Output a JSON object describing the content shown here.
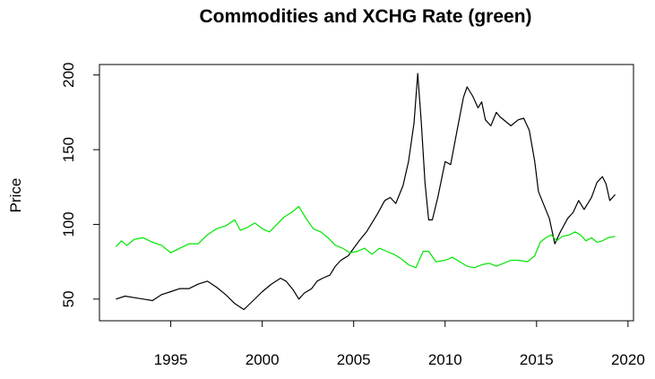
{
  "chart_data": {
    "type": "line",
    "title": "Commodities and XCHG Rate (green)",
    "xlabel": "",
    "ylabel": "Price",
    "xlim": [
      1991.1,
      2020.3
    ],
    "ylim": [
      35.5,
      207
    ],
    "x_ticks": [
      1995,
      2000,
      2005,
      2010,
      2015,
      2020
    ],
    "y_ticks": [
      50,
      100,
      150,
      200
    ],
    "grid": false,
    "series": [
      {
        "color": "#000000",
        "points": [
          [
            1992.0,
            50
          ],
          [
            1992.5,
            52
          ],
          [
            1993.0,
            51
          ],
          [
            1993.5,
            50
          ],
          [
            1994.0,
            49
          ],
          [
            1994.5,
            53
          ],
          [
            1995.0,
            55
          ],
          [
            1995.5,
            57
          ],
          [
            1996.0,
            57
          ],
          [
            1996.5,
            60
          ],
          [
            1997.0,
            62
          ],
          [
            1997.5,
            58
          ],
          [
            1998.0,
            53
          ],
          [
            1998.5,
            47
          ],
          [
            1999.0,
            43
          ],
          [
            1999.5,
            49
          ],
          [
            2000.0,
            55
          ],
          [
            2000.5,
            60
          ],
          [
            2001.0,
            64
          ],
          [
            2001.3,
            62
          ],
          [
            2001.7,
            56
          ],
          [
            2002.0,
            50
          ],
          [
            2002.3,
            54
          ],
          [
            2002.7,
            57
          ],
          [
            2003.0,
            62
          ],
          [
            2003.3,
            64
          ],
          [
            2003.7,
            66
          ],
          [
            2004.0,
            72
          ],
          [
            2004.3,
            76
          ],
          [
            2004.7,
            79
          ],
          [
            2005.0,
            84
          ],
          [
            2005.3,
            89
          ],
          [
            2005.7,
            95
          ],
          [
            2006.0,
            101
          ],
          [
            2006.3,
            107
          ],
          [
            2006.7,
            116
          ],
          [
            2007.0,
            118
          ],
          [
            2007.3,
            114
          ],
          [
            2007.7,
            126
          ],
          [
            2008.0,
            142
          ],
          [
            2008.3,
            168
          ],
          [
            2008.5,
            201
          ],
          [
            2008.7,
            168
          ],
          [
            2008.9,
            128
          ],
          [
            2009.1,
            103
          ],
          [
            2009.3,
            103
          ],
          [
            2009.6,
            118
          ],
          [
            2010.0,
            142
          ],
          [
            2010.3,
            140
          ],
          [
            2010.7,
            166
          ],
          [
            2011.0,
            185
          ],
          [
            2011.2,
            192
          ],
          [
            2011.5,
            186
          ],
          [
            2011.8,
            178
          ],
          [
            2012.0,
            182
          ],
          [
            2012.2,
            170
          ],
          [
            2012.5,
            166
          ],
          [
            2012.8,
            175
          ],
          [
            2013.0,
            172
          ],
          [
            2013.3,
            169
          ],
          [
            2013.6,
            166
          ],
          [
            2014.0,
            170
          ],
          [
            2014.3,
            171
          ],
          [
            2014.6,
            163
          ],
          [
            2014.9,
            142
          ],
          [
            2015.1,
            122
          ],
          [
            2015.4,
            113
          ],
          [
            2015.7,
            104
          ],
          [
            2016.0,
            87
          ],
          [
            2016.3,
            95
          ],
          [
            2016.7,
            104
          ],
          [
            2017.0,
            108
          ],
          [
            2017.3,
            116
          ],
          [
            2017.6,
            110
          ],
          [
            2018.0,
            118
          ],
          [
            2018.3,
            128
          ],
          [
            2018.6,
            132
          ],
          [
            2018.8,
            127
          ],
          [
            2019.0,
            116
          ],
          [
            2019.3,
            120
          ]
        ]
      },
      {
        "color": "#00e600",
        "points": [
          [
            1992.0,
            85
          ],
          [
            1992.3,
            89
          ],
          [
            1992.6,
            86
          ],
          [
            1993.0,
            90
          ],
          [
            1993.5,
            91
          ],
          [
            1994.0,
            88
          ],
          [
            1994.5,
            86
          ],
          [
            1995.0,
            81
          ],
          [
            1995.5,
            84
          ],
          [
            1996.0,
            87
          ],
          [
            1996.5,
            87
          ],
          [
            1997.0,
            93
          ],
          [
            1997.5,
            97
          ],
          [
            1998.0,
            99
          ],
          [
            1998.5,
            103
          ],
          [
            1998.8,
            96
          ],
          [
            1999.2,
            98
          ],
          [
            1999.6,
            101
          ],
          [
            2000.0,
            97
          ],
          [
            2000.4,
            95
          ],
          [
            2000.8,
            100
          ],
          [
            2001.2,
            105
          ],
          [
            2001.6,
            108
          ],
          [
            2002.0,
            112
          ],
          [
            2002.4,
            104
          ],
          [
            2002.8,
            97
          ],
          [
            2003.2,
            95
          ],
          [
            2003.6,
            91
          ],
          [
            2004.0,
            86
          ],
          [
            2004.4,
            84
          ],
          [
            2004.8,
            81
          ],
          [
            2005.2,
            82
          ],
          [
            2005.6,
            84
          ],
          [
            2006.0,
            80
          ],
          [
            2006.4,
            84
          ],
          [
            2006.8,
            82
          ],
          [
            2007.2,
            80
          ],
          [
            2007.6,
            77
          ],
          [
            2008.0,
            73
          ],
          [
            2008.4,
            71
          ],
          [
            2008.8,
            82
          ],
          [
            2009.1,
            82
          ],
          [
            2009.5,
            75
          ],
          [
            2010.0,
            76
          ],
          [
            2010.4,
            78
          ],
          [
            2010.8,
            75
          ],
          [
            2011.2,
            72
          ],
          [
            2011.6,
            71
          ],
          [
            2012.0,
            73
          ],
          [
            2012.4,
            74
          ],
          [
            2012.8,
            72
          ],
          [
            2013.2,
            74
          ],
          [
            2013.6,
            76
          ],
          [
            2014.0,
            76
          ],
          [
            2014.5,
            75
          ],
          [
            2014.9,
            79
          ],
          [
            2015.2,
            88
          ],
          [
            2015.5,
            91
          ],
          [
            2015.8,
            93
          ],
          [
            2016.1,
            89
          ],
          [
            2016.4,
            92
          ],
          [
            2016.8,
            93
          ],
          [
            2017.1,
            95
          ],
          [
            2017.4,
            93
          ],
          [
            2017.7,
            89
          ],
          [
            2018.0,
            91
          ],
          [
            2018.3,
            88
          ],
          [
            2018.6,
            89
          ],
          [
            2018.9,
            91
          ],
          [
            2019.3,
            92
          ]
        ]
      }
    ]
  }
}
